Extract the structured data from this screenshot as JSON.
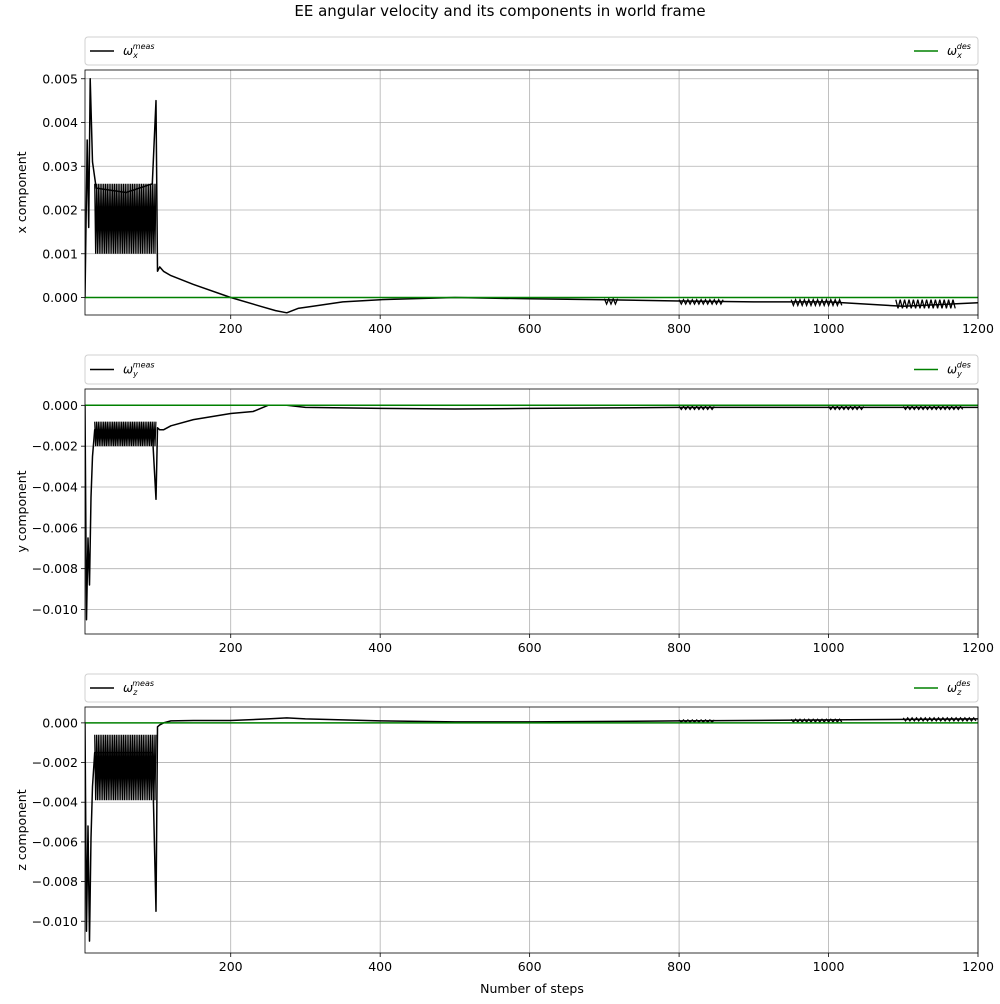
{
  "figure": {
    "title": "EE angular velocity and its components in world frame",
    "xlabel": "Number of steps"
  },
  "colors": {
    "measured": "#000000",
    "desired": "#008000",
    "grid": "#b0b0b0"
  },
  "chart_data": [
    {
      "type": "line",
      "title": "",
      "ylabel": "x component",
      "xlim": [
        5,
        1200
      ],
      "ylim": [
        -0.0004,
        0.0052
      ],
      "xticks": [
        200,
        400,
        600,
        800,
        1000,
        1200
      ],
      "yticks": [
        0.0,
        0.001,
        0.002,
        0.003,
        0.004,
        0.005
      ],
      "ytick_labels": [
        "0.000",
        "0.001",
        "0.002",
        "0.003",
        "0.004",
        "0.005"
      ],
      "grid": true,
      "legend": {
        "placement": "above-axes",
        "meas_base": "ω",
        "meas_sub": "x",
        "meas_sup": "meas",
        "des_base": "ω",
        "des_sub": "x",
        "des_sup": "des"
      },
      "series": [
        {
          "name": "ω_x^meas",
          "role": "measured",
          "x": [
            5,
            8,
            10,
            12,
            15,
            20,
            60,
            95,
            100,
            102,
            105,
            110,
            120,
            150,
            200,
            240,
            260,
            275,
            290,
            310,
            350,
            400,
            500,
            600,
            700,
            800,
            900,
            1000,
            1100,
            1200
          ],
          "y": [
            0.0,
            0.0036,
            0.0016,
            0.005,
            0.0031,
            0.0025,
            0.0024,
            0.0026,
            0.0045,
            0.0006,
            0.0007,
            0.0006,
            0.0005,
            0.0003,
            0.0,
            -0.0002,
            -0.0003,
            -0.00035,
            -0.00025,
            -0.0002,
            -0.0001,
            -5e-05,
            0.0,
            -3e-05,
            -5e-05,
            -8e-05,
            -0.0001,
            -0.0001,
            -0.0002,
            -0.00012
          ],
          "band": {
            "x_from": 18,
            "x_to": 100,
            "low": 0.001,
            "high": 0.0026
          },
          "jitter": [
            {
              "x_from": 700,
              "x_to": 720,
              "low": -0.00015,
              "high": -3e-05
            },
            {
              "x_from": 800,
              "x_to": 860,
              "low": -0.00015,
              "high": -5e-05
            },
            {
              "x_from": 950,
              "x_to": 1020,
              "low": -0.00018,
              "high": -5e-05
            },
            {
              "x_from": 1090,
              "x_to": 1170,
              "low": -0.00025,
              "high": -5e-05
            }
          ]
        },
        {
          "name": "ω_x^des",
          "role": "desired",
          "x": [
            5,
            1200
          ],
          "y": [
            0.0,
            0.0
          ]
        }
      ]
    },
    {
      "type": "line",
      "title": "",
      "ylabel": "y component",
      "xlim": [
        5,
        1200
      ],
      "ylim": [
        -0.0112,
        0.0008
      ],
      "xticks": [
        200,
        400,
        600,
        800,
        1000,
        1200
      ],
      "yticks": [
        0.0,
        -0.002,
        -0.004,
        -0.006,
        -0.008,
        -0.01
      ],
      "ytick_labels": [
        "0.000",
        "−0.002",
        "−0.004",
        "−0.006",
        "−0.008",
        "−0.010"
      ],
      "grid": true,
      "legend": {
        "placement": "above-axes",
        "meas_base": "ω",
        "meas_sub": "y",
        "meas_sup": "meas",
        "des_base": "ω",
        "des_sub": "y",
        "des_sup": "des"
      },
      "series": [
        {
          "name": "ω_y^meas",
          "role": "measured",
          "x": [
            5,
            7,
            9,
            11,
            13,
            15,
            18,
            95,
            100,
            102,
            105,
            110,
            120,
            150,
            200,
            230,
            250,
            275,
            300,
            400,
            500,
            600,
            800,
            1000,
            1200
          ],
          "y": [
            0.0,
            -0.0105,
            -0.0065,
            -0.0088,
            -0.0045,
            -0.0025,
            -0.0012,
            -0.0013,
            -0.0046,
            -0.0011,
            -0.0012,
            -0.0012,
            -0.001,
            -0.0007,
            -0.0004,
            -0.0003,
            0.0,
            0.0,
            -0.0001,
            -0.00015,
            -0.00018,
            -0.00015,
            -0.0001,
            -0.0001,
            -0.0001
          ],
          "band": {
            "x_from": 18,
            "x_to": 100,
            "low": -0.002,
            "high": -0.0008
          },
          "jitter": [
            {
              "x_from": 800,
              "x_to": 850,
              "low": -0.0002,
              "high": -5e-05
            },
            {
              "x_from": 1000,
              "x_to": 1050,
              "low": -0.0002,
              "high": -5e-05
            },
            {
              "x_from": 1100,
              "x_to": 1180,
              "low": -0.0002,
              "high": -5e-05
            }
          ]
        },
        {
          "name": "ω_y^des",
          "role": "desired",
          "x": [
            5,
            1200
          ],
          "y": [
            0.0,
            0.0
          ]
        }
      ]
    },
    {
      "type": "line",
      "title": "",
      "ylabel": "z component",
      "xlim": [
        5,
        1200
      ],
      "ylim": [
        -0.0116,
        0.0008
      ],
      "xticks": [
        200,
        400,
        600,
        800,
        1000,
        1200
      ],
      "yticks": [
        0.0,
        -0.002,
        -0.004,
        -0.006,
        -0.008,
        -0.01
      ],
      "ytick_labels": [
        "0.000",
        "−0.002",
        "−0.004",
        "−0.006",
        "−0.008",
        "−0.010"
      ],
      "grid": true,
      "legend": {
        "placement": "above-axes",
        "meas_base": "ω",
        "meas_sub": "z",
        "meas_sup": "meas",
        "des_base": "ω",
        "des_sub": "z",
        "des_sup": "des"
      },
      "series": [
        {
          "name": "ω_z^meas",
          "role": "measured",
          "x": [
            5,
            7,
            9,
            11,
            13,
            15,
            18,
            95,
            100,
            102,
            105,
            110,
            120,
            150,
            200,
            250,
            275,
            300,
            400,
            500,
            600,
            800,
            1000,
            1200
          ],
          "y": [
            0.0,
            -0.0105,
            -0.0052,
            -0.011,
            -0.0058,
            -0.0032,
            -0.0015,
            -0.0015,
            -0.0095,
            -0.0002,
            -0.0001,
            0.0,
            0.0001,
            0.00012,
            0.00012,
            0.0002,
            0.00025,
            0.0002,
            0.0001,
            5e-05,
            5e-05,
            0.0001,
            0.00015,
            0.0002
          ],
          "band": {
            "x_from": 18,
            "x_to": 100,
            "low": -0.0039,
            "high": -0.0006
          },
          "jitter": [
            {
              "x_from": 800,
              "x_to": 850,
              "low": 3e-05,
              "high": 0.00015
            },
            {
              "x_from": 950,
              "x_to": 1020,
              "low": 5e-05,
              "high": 0.00018
            },
            {
              "x_from": 1100,
              "x_to": 1200,
              "low": 0.0001,
              "high": 0.00025
            }
          ]
        },
        {
          "name": "ω_z^des",
          "role": "desired",
          "x": [
            5,
            1200
          ],
          "y": [
            0.0,
            0.0
          ]
        }
      ]
    }
  ]
}
